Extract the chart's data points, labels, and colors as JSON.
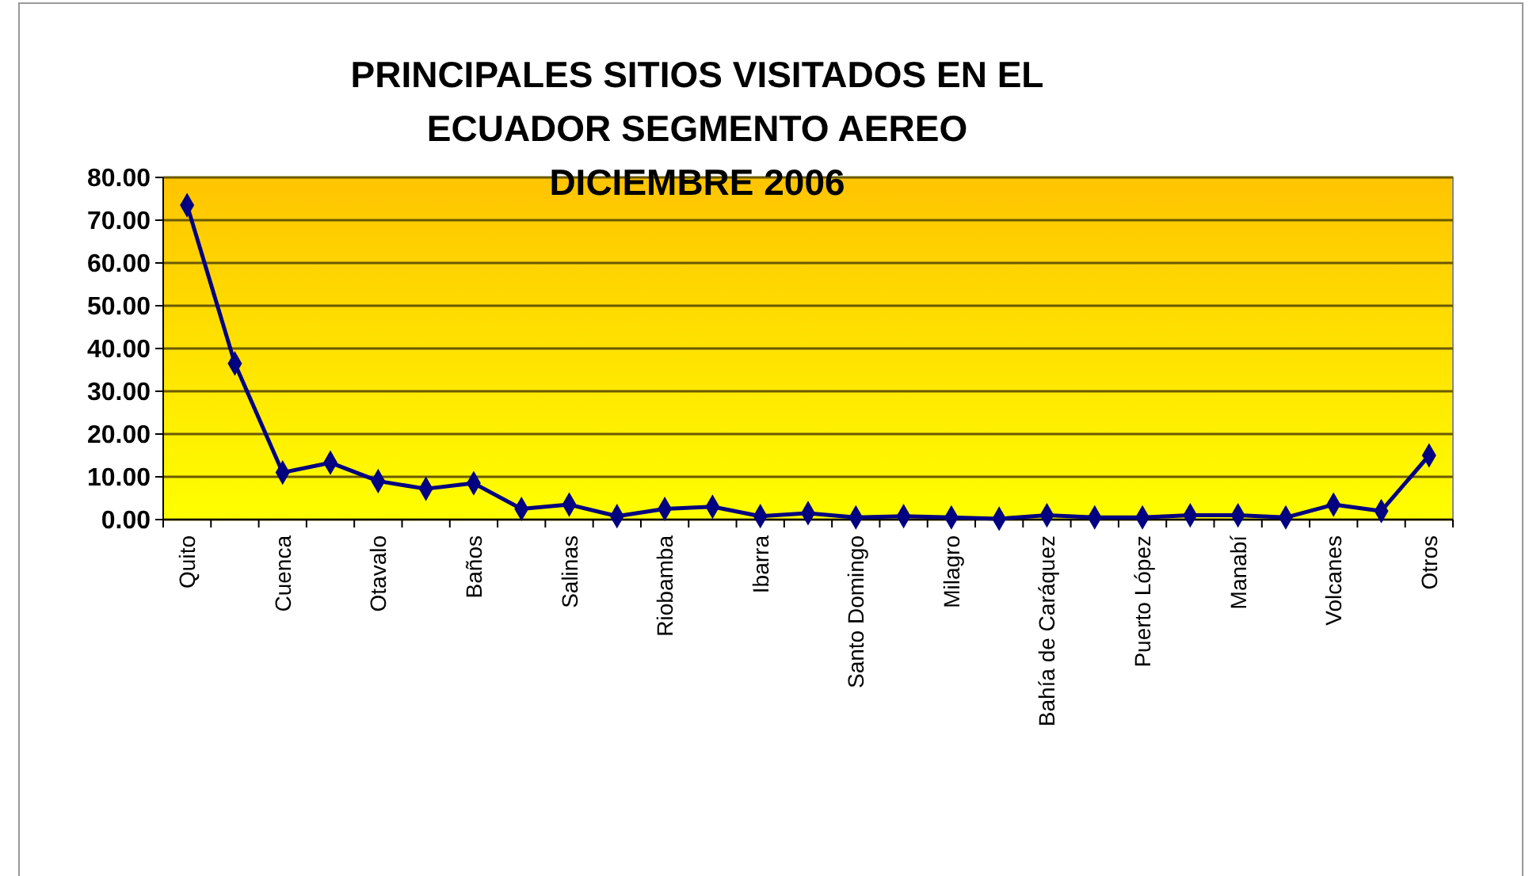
{
  "chart_data": {
    "type": "line",
    "title": "PRINCIPALES SITIOS VISITADOS EN EL ECUADOR SEGMENTO AEREO DICIEMBRE 2006",
    "categories": [
      "Quito",
      null,
      "Cuenca",
      null,
      "Otavalo",
      null,
      "Baños",
      null,
      "Salinas",
      null,
      "Riobamba",
      null,
      "Ibarra",
      null,
      "Santo Domingo",
      null,
      "Milagro",
      null,
      "Bahía de Caráquez",
      null,
      "Puerto López",
      null,
      "Manabí",
      null,
      "Volcanes",
      null,
      "Otros"
    ],
    "series": [
      {
        "color": "#000080",
        "values": [
          73.5,
          36.5,
          11,
          13.3,
          9,
          7.2,
          8.5,
          2.5,
          3.5,
          0.8,
          2.5,
          3,
          0.8,
          1.5,
          0.5,
          0.8,
          0.5,
          0.2,
          1,
          0.5,
          0.5,
          1,
          1,
          0.5,
          3.5,
          2,
          15
        ]
      }
    ],
    "ylim": [
      0,
      80
    ],
    "yticks": [
      {
        "value": 0,
        "label": "0.00"
      },
      {
        "value": 10,
        "label": "10.00"
      },
      {
        "value": 20,
        "label": "20.00"
      },
      {
        "value": 30,
        "label": "30.00"
      },
      {
        "value": 40,
        "label": "40.00"
      },
      {
        "value": 50,
        "label": "50.00"
      },
      {
        "value": 60,
        "label": "60.00"
      },
      {
        "value": 70,
        "label": "70.00"
      },
      {
        "value": 80,
        "label": "80.00"
      }
    ],
    "grid": "y",
    "marker": "diamond",
    "line_style": "solid"
  }
}
